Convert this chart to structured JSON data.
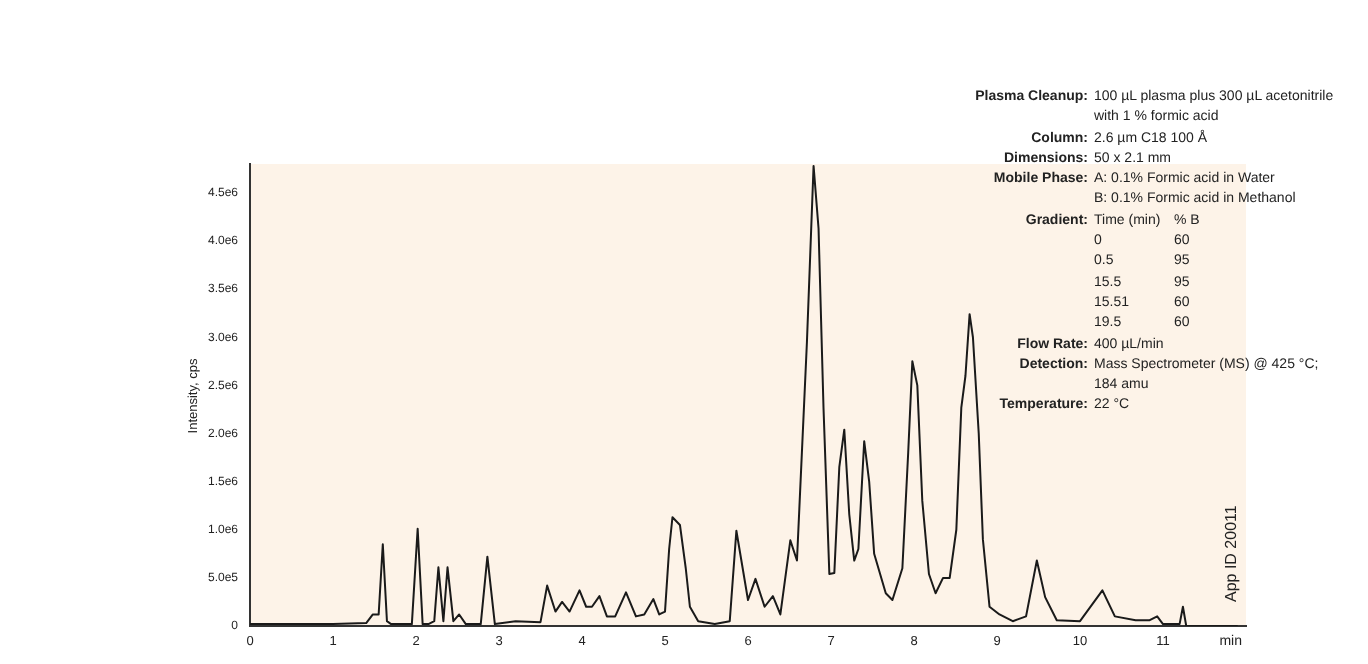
{
  "chart_data": {
    "type": "line",
    "ylabel": "Intensity, cps",
    "xlabel": "min",
    "x": [
      0,
      0.5,
      1,
      1.4,
      1.48,
      1.55,
      1.6,
      1.65,
      1.7,
      1.95,
      2.02,
      2.08,
      2.15,
      2.22,
      2.27,
      2.33,
      2.38,
      2.45,
      2.52,
      2.6,
      2.78,
      2.86,
      2.95,
      3.2,
      3.5,
      3.58,
      3.68,
      3.76,
      3.85,
      3.97,
      4.05,
      4.12,
      4.21,
      4.3,
      4.4,
      4.53,
      4.65,
      4.75,
      4.86,
      4.93,
      5.0,
      5.05,
      5.09,
      5.18,
      5.25,
      5.3,
      5.4,
      5.6,
      5.78,
      5.86,
      6.0,
      6.09,
      6.2,
      6.3,
      6.39,
      6.51,
      6.59,
      6.71,
      6.79,
      6.85,
      6.91,
      6.98,
      7.04,
      7.1,
      7.16,
      7.22,
      7.28,
      7.33,
      7.4,
      7.46,
      7.52,
      7.66,
      7.74,
      7.86,
      7.93,
      7.98,
      8.04,
      8.1,
      8.18,
      8.26,
      8.35,
      8.43,
      8.51,
      8.57,
      8.62,
      8.67,
      8.71,
      8.78,
      8.83,
      8.91,
      9.03,
      9.19,
      9.35,
      9.48,
      9.58,
      9.72,
      10.0,
      10.27,
      10.42,
      10.67,
      10.84,
      10.93,
      11.0,
      11.2,
      11.24,
      11.28,
      11.9
    ],
    "series": [
      {
        "color": "#1a1a1a",
        "values": [
          20000.0,
          20000.0,
          20000.0,
          30000.0,
          120000.0,
          120000.0,
          850000.0,
          50000.0,
          20000.0,
          20000.0,
          1010000.0,
          20000.0,
          20000.0,
          50000.0,
          610000.0,
          50000.0,
          610000.0,
          50000.0,
          120000.0,
          20000.0,
          20000.0,
          720000.0,
          20000.0,
          50000.0,
          40000.0,
          420000.0,
          150000.0,
          250000.0,
          150000.0,
          370000.0,
          200000.0,
          200000.0,
          310000.0,
          100000.0,
          100000.0,
          350000.0,
          100000.0,
          120000.0,
          280000.0,
          120000.0,
          150000.0,
          800000.0,
          1130000.0,
          1050000.0,
          600000.0,
          200000.0,
          50000.0,
          20000.0,
          50000.0,
          990000.0,
          270000.0,
          490000.0,
          200000.0,
          310000.0,
          120000.0,
          890000.0,
          680000.0,
          2950000.0,
          4780000.0,
          4130000.0,
          2260000.0,
          540000.0,
          550000.0,
          1650000.0,
          2040000.0,
          1160000.0,
          680000.0,
          800000.0,
          1920000.0,
          1500000.0,
          750000.0,
          340000.0,
          270000.0,
          600000.0,
          1800000.0,
          2750000.0,
          2500000.0,
          1300000.0,
          540000.0,
          340000.0,
          500000.0,
          500000.0,
          1000000.0,
          2270000.0,
          2600000.0,
          3240000.0,
          3000000.0,
          2000000.0,
          900000.0,
          200000.0,
          120000.0,
          50000.0,
          100000.0,
          680000.0,
          300000.0,
          60000.0,
          50000.0,
          370000.0,
          100000.0,
          60000.0,
          60000.0,
          100000.0,
          20000.0,
          20000.0,
          200000.0,
          0.0,
          0.0
        ]
      }
    ],
    "xlim": [
      0,
      12
    ],
    "xticks": [
      0,
      1,
      2,
      3,
      4,
      5,
      6,
      7,
      8,
      9,
      10,
      11
    ],
    "ylim": [
      0,
      4800000.0
    ],
    "yticks": [
      {
        "value": 0,
        "label": "0"
      },
      {
        "value": 500000,
        "label": "5.0e5"
      },
      {
        "value": 1000000,
        "label": "1.0e6"
      },
      {
        "value": 1500000,
        "label": "1.5e6"
      },
      {
        "value": 2000000,
        "label": "2.0e6"
      },
      {
        "value": 2500000,
        "label": "2.5e6"
      },
      {
        "value": 3000000,
        "label": "3.0e6"
      },
      {
        "value": 3500000,
        "label": "3.5e6"
      },
      {
        "value": 4000000,
        "label": "4.0e6"
      },
      {
        "value": 4500000,
        "label": "4.5e6"
      }
    ],
    "grid": false,
    "legend": false,
    "marker": "none",
    "line_style": "solid",
    "annotations": [
      "Plasma Cleanup: 100 µL plasma plus 300 µL acetonitrile\nwith 1 % formic acid",
      "Column: 2.6 µm C18 100 Å",
      "Dimensions: 50 x 2.1 mm",
      "Mobile Phase: A: 0.1% Formic acid in Water\nB: 0.1% Formic acid in Methanol",
      "Gradient: Time (min)\t% B\n0\t60\n0.5\t95\n15.5\t95\n15.51\t60\n19.5\t60",
      "Flow Rate: 400 µL/min",
      "Detection: Mass Spectrometer (MS) @ 425 °C;\n184 amu",
      "Temperature: 22 °C",
      "App ID 20011"
    ]
  }
}
